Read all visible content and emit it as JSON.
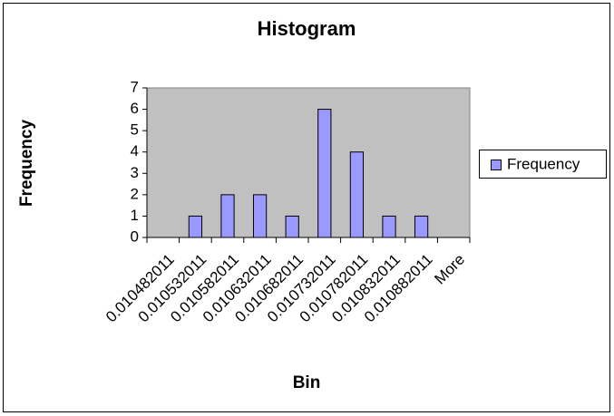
{
  "chart_data": {
    "type": "bar",
    "title": "Histogram",
    "x_label": "Bin",
    "y_label": "Frequency",
    "categories": [
      "0.010482011",
      "0.010532011",
      "0.010582011",
      "0.010632011",
      "0.010682011",
      "0.010732011",
      "0.010782011",
      "0.010832011",
      "0.010882011",
      "More"
    ],
    "series": [
      {
        "name": "Frequency",
        "color": "#9999ff",
        "values": [
          0,
          1,
          2,
          2,
          1,
          6,
          4,
          1,
          1,
          0
        ]
      }
    ],
    "ylim": [
      0,
      7
    ],
    "yticks": [
      0,
      1,
      2,
      3,
      4,
      5,
      6,
      7
    ],
    "grid": false,
    "legend": "right",
    "plot_background": "#c0c0c0"
  }
}
